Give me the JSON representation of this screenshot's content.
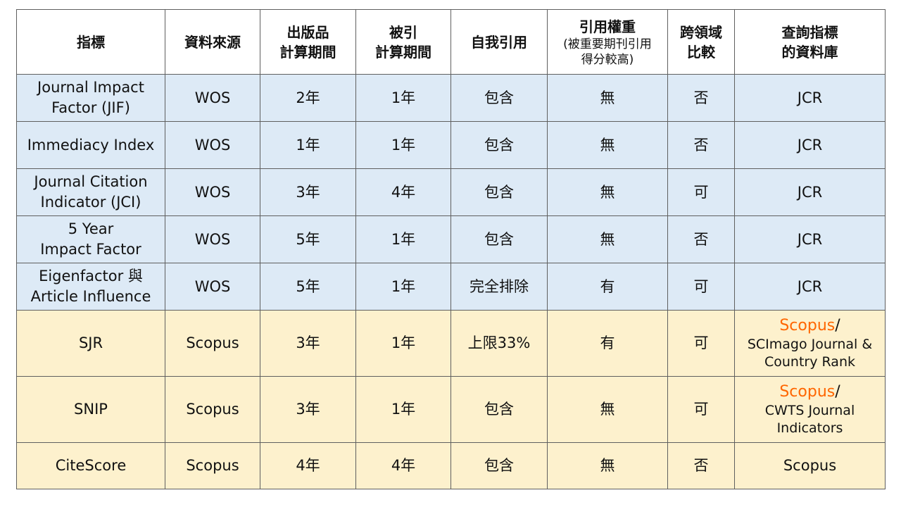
{
  "headers": {
    "metric": "指標",
    "source": "資料來源",
    "pub_period_1": "出版品",
    "pub_period_2": "計算期間",
    "cite_period_1": "被引",
    "cite_period_2": "計算期間",
    "self_citation": "自我引用",
    "weight_1": "引用權重",
    "weight_2": "(被重要期刊引用",
    "weight_3": "得分較高)",
    "cross_field_1": "跨領域",
    "cross_field_2": "比較",
    "db_1": "查詢指標",
    "db_2": "的資料庫"
  },
  "rows": [
    {
      "name_1": "Journal Impact",
      "name_2": "Factor (JIF)",
      "source": "WOS",
      "pub_period": "2年",
      "cite_period": "1年",
      "self_citation": "包含",
      "weight": "無",
      "cross_field": "否",
      "db": "JCR"
    },
    {
      "name_1": "Immediacy Index",
      "source": "WOS",
      "pub_period": "1年",
      "cite_period": "1年",
      "self_citation": "包含",
      "weight": "無",
      "cross_field": "否",
      "db": "JCR"
    },
    {
      "name_1": "Journal Citation",
      "name_2": "Indicator (JCI)",
      "source": "WOS",
      "pub_period": "3年",
      "cite_period": "4年",
      "self_citation": "包含",
      "weight": "無",
      "cross_field": "可",
      "db": "JCR"
    },
    {
      "name_1": "5 Year",
      "name_2": "Impact Factor",
      "source": "WOS",
      "pub_period": "5年",
      "cite_period": "1年",
      "self_citation": "包含",
      "weight": "無",
      "cross_field": "否",
      "db": "JCR"
    },
    {
      "name_1": "Eigenfactor 與",
      "name_2": "Article Influence",
      "source": "WOS",
      "pub_period": "5年",
      "cite_period": "1年",
      "self_citation": "完全排除",
      "weight": "有",
      "cross_field": "可",
      "db": "JCR"
    },
    {
      "name_1": "SJR",
      "source": "Scopus",
      "pub_period": "3年",
      "cite_period": "1年",
      "self_citation": "上限33%",
      "weight": "有",
      "cross_field": "可",
      "db_head": "Scopus",
      "db_slash": "/",
      "db_line_1": "SCImago Journal &",
      "db_line_2": "Country Rank"
    },
    {
      "name_1": "SNIP",
      "source": "Scopus",
      "pub_period": "3年",
      "cite_period": "1年",
      "self_citation": "包含",
      "weight": "無",
      "cross_field": "可",
      "db_head": "Scopus",
      "db_slash": "/",
      "db_line_1": "CWTS Journal",
      "db_line_2": "Indicators"
    },
    {
      "name_1": "CiteScore",
      "source": "Scopus",
      "pub_period": "4年",
      "cite_period": "4年",
      "self_citation": "包含",
      "weight": "無",
      "cross_field": "否",
      "db": "Scopus"
    }
  ],
  "colors": {
    "wos_row_bg": "#ddeaf6",
    "scopus_row_bg": "#fdf1cd",
    "wos_text": "#7030a0",
    "scopus_text": "#ff6600",
    "border": "#5f5f5f"
  }
}
